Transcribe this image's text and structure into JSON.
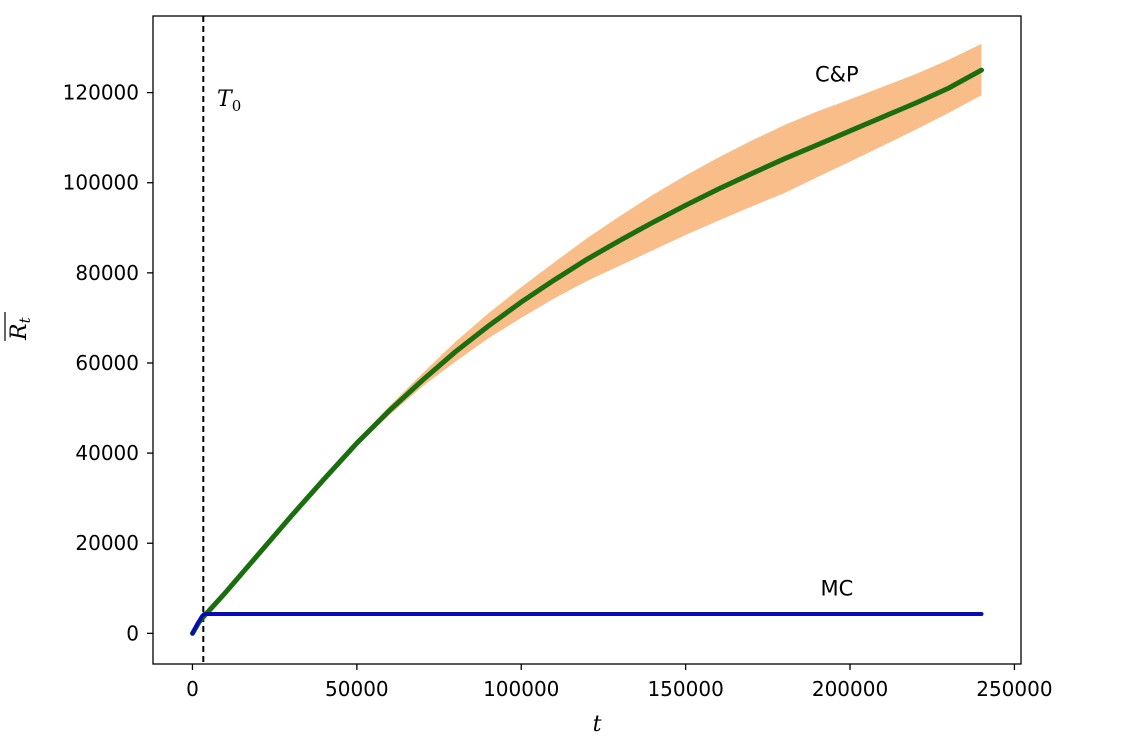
{
  "chart_data": {
    "type": "line",
    "xlabel": "t",
    "ylabel": "R",
    "ylabel_subscript": "t",
    "xlim": [
      -12000,
      252000
    ],
    "ylim": [
      -6800,
      137000
    ],
    "xticks": [
      0,
      50000,
      100000,
      150000,
      200000,
      250000
    ],
    "yticks": [
      0,
      20000,
      40000,
      60000,
      80000,
      100000,
      120000
    ],
    "grid": false,
    "vline": {
      "x": 3300,
      "label": "T",
      "label_subscript": "0",
      "color": "#000000",
      "style": "dashed"
    },
    "colors": {
      "cp_line": "#1a6e0f",
      "cp_band": "#f8bd88",
      "mc_line": "#0b0bb4"
    },
    "series": [
      {
        "name": "C&P",
        "x": [
          0,
          2000,
          4000,
          10000,
          20000,
          30000,
          40000,
          50000,
          60000,
          70000,
          80000,
          90000,
          100000,
          110000,
          120000,
          130000,
          140000,
          150000,
          160000,
          170000,
          180000,
          190000,
          200000,
          210000,
          220000,
          230000,
          240000
        ],
        "y": [
          0,
          2500,
          4200,
          9000,
          17500,
          26000,
          34200,
          42200,
          49500,
          56200,
          62500,
          68200,
          73500,
          78400,
          83000,
          87200,
          91200,
          95000,
          98600,
          102000,
          105300,
          108400,
          111500,
          114600,
          117700,
          121000,
          125000
        ],
        "lower": [
          0,
          2500,
          4200,
          9000,
          17400,
          25800,
          33900,
          41600,
          48500,
          54800,
          60300,
          65500,
          70000,
          74300,
          78200,
          81600,
          85000,
          88400,
          91600,
          94700,
          97700,
          101200,
          104700,
          108200,
          111800,
          115500,
          119400
        ],
        "upper": [
          0,
          2500,
          4200,
          9000,
          17600,
          26200,
          34500,
          42800,
          50500,
          57700,
          64700,
          71000,
          76800,
          82300,
          87700,
          92600,
          97300,
          101600,
          105600,
          109300,
          112800,
          115800,
          118500,
          121300,
          124100,
          127300,
          130800
        ]
      },
      {
        "name": "MC",
        "x": [
          0,
          1500,
          3000,
          3600,
          240000
        ],
        "y": [
          0,
          2100,
          3900,
          4300,
          4300
        ]
      }
    ],
    "annotations": [
      {
        "text": "C&P",
        "x": 196000,
        "y": 124000
      },
      {
        "text": "MC",
        "x": 196000,
        "y": 10000
      }
    ]
  }
}
